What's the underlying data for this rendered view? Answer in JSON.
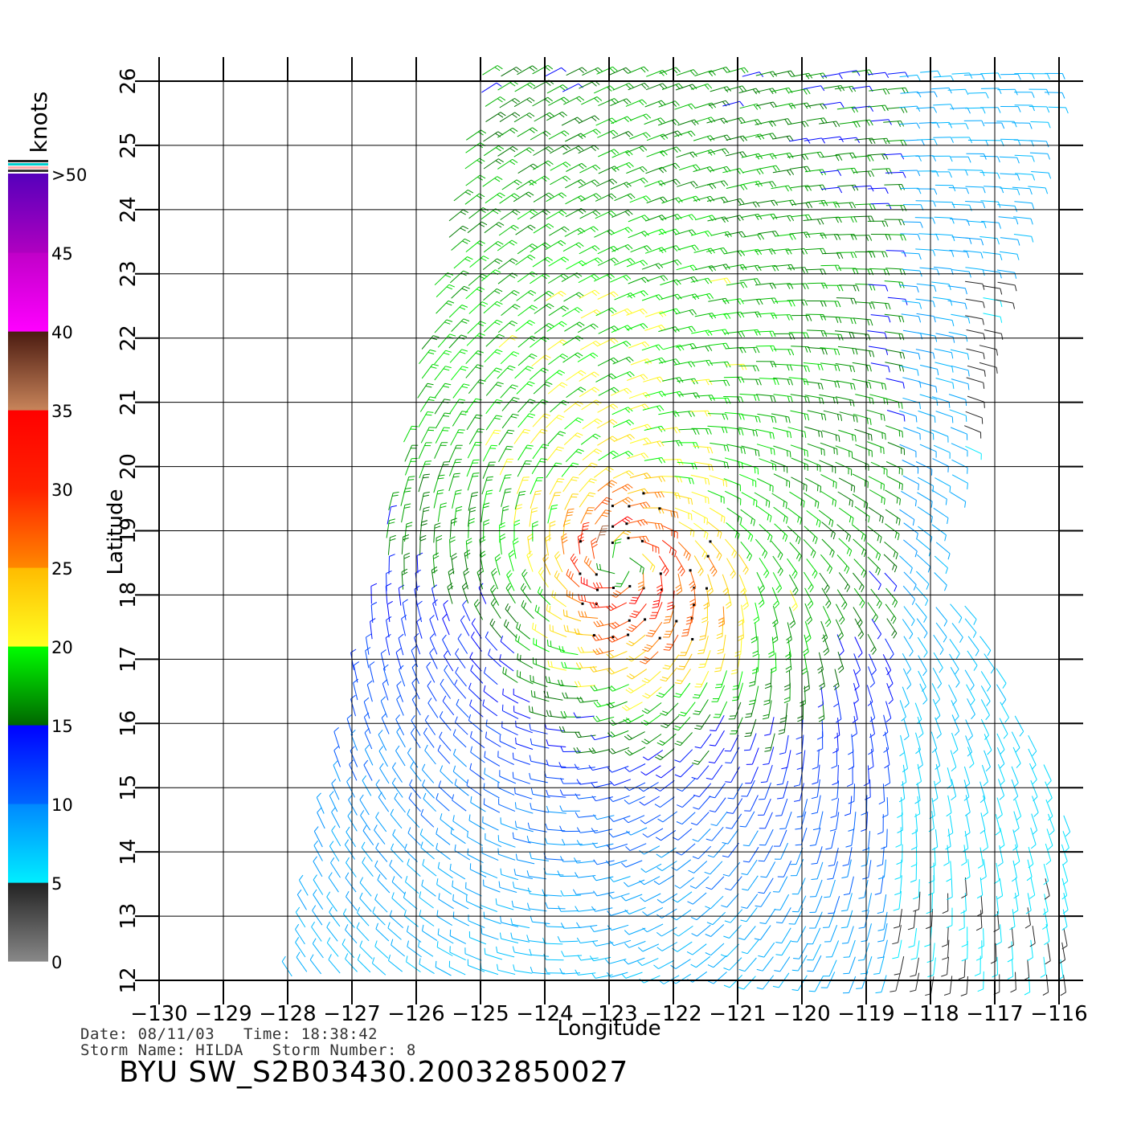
{
  "map": {
    "x_axis_label": "Longitude",
    "y_axis_label": "Latitude",
    "lon_ticks": [
      -130,
      -129,
      -128,
      -127,
      -126,
      -125,
      -124,
      -123,
      -122,
      -121,
      -120,
      -119,
      -118,
      -117,
      -116
    ],
    "lat_ticks": [
      12,
      13,
      14,
      15,
      16,
      17,
      18,
      19,
      20,
      21,
      22,
      23,
      24,
      25,
      26
    ],
    "lon_range": [
      -130,
      -116
    ],
    "lat_range": [
      12,
      26
    ],
    "grid": true,
    "storm_center": {
      "lon": -122.8,
      "lat": 18.5
    },
    "swath_corners": [
      [
        -128.0,
        12.0
      ],
      [
        -119.5,
        12.0
      ],
      [
        -116.0,
        26.2
      ],
      [
        -125.0,
        26.2
      ]
    ],
    "secondary_swath_corners": [
      [
        -120.0,
        12.0
      ],
      [
        -115.8,
        12.0
      ],
      [
        -115.8,
        14.5
      ],
      [
        -117.5,
        18.0
      ],
      [
        -119.0,
        18.0
      ]
    ]
  },
  "colorbar": {
    "title": "knots",
    "labels": [
      ">50",
      "45",
      "40",
      "35",
      "30",
      "25",
      "20",
      "15",
      "10",
      "5",
      "0"
    ],
    "bands": [
      {
        "from": 0,
        "to": 5,
        "colors": [
          "#888888",
          "#222222"
        ]
      },
      {
        "from": 5,
        "to": 10,
        "colors": [
          "#00eeff",
          "#0088ff"
        ]
      },
      {
        "from": 10,
        "to": 15,
        "colors": [
          "#0066ff",
          "#0000ff"
        ]
      },
      {
        "from": 15,
        "to": 20,
        "colors": [
          "#006600",
          "#00ff00"
        ]
      },
      {
        "from": 20,
        "to": 25,
        "colors": [
          "#ffff22",
          "#ffbb00"
        ]
      },
      {
        "from": 25,
        "to": 30,
        "colors": [
          "#ff8800",
          "#ff2200"
        ]
      },
      {
        "from": 30,
        "to": 35,
        "colors": [
          "#ff2200",
          "#ff0000"
        ]
      },
      {
        "from": 35,
        "to": 40,
        "colors": [
          "#c8845a",
          "#4a1a10"
        ]
      },
      {
        "from": 40,
        "to": 45,
        "colors": [
          "#ff00ff",
          "#c000c8"
        ]
      },
      {
        "from": 45,
        "to": 50,
        "colors": [
          "#b000c0",
          "#5500bb"
        ]
      }
    ],
    "top_stripes": [
      "#222222",
      "#00d0d0",
      "#ffaaaa",
      "#333333"
    ]
  },
  "info": {
    "line1": "Date: 08/11/03   Time: 18:38:42",
    "line2": "Storm Name: HILDA   Storm Number: 8",
    "file_title": "BYU SW_S2B03430.20032850027"
  }
}
